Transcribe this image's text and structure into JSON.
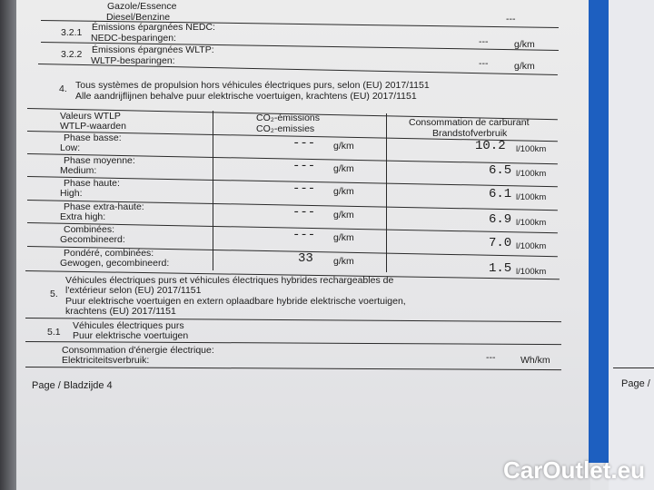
{
  "top": {
    "fuel_fr": "Gazole/Essence",
    "fuel_nl": "Diesel/Benzine",
    "fuel_value": "---"
  },
  "s321": {
    "num": "3.2.1",
    "fr": "Émissions épargnées NEDC:",
    "nl": "NEDC-besparingen:",
    "value": "---",
    "unit": "g/km"
  },
  "s322": {
    "num": "3.2.2",
    "fr": "Émissions épargnées WLTP:",
    "nl": "WLTP-besparingen:",
    "value": "---",
    "unit": "g/km"
  },
  "s4": {
    "num": "4.",
    "fr": "Tous systèmes de propulsion hors véhicules électriques purs, selon (EU) 2017/1151",
    "nl": "Alle aandrijflijnen behalve puur elektrische voertuigen, krachtens (EU) 2017/1151"
  },
  "table": {
    "headers": {
      "c1a": "Valeurs WTLP",
      "c1b": "WTLP-waarden",
      "c2a": "CO₂-émissions",
      "c2b": "CO₂-emissies",
      "c3a": "Consommation de carburant",
      "c3b": "Brandstofverbruik"
    },
    "rows": [
      {
        "fr": "Phase basse:",
        "nl": "Low:",
        "co2": "---",
        "co2_unit": "g/km",
        "fuel": "10.2",
        "fuel_unit": "l/100km"
      },
      {
        "fr": "Phase moyenne:",
        "nl": "Medium:",
        "co2": "---",
        "co2_unit": "g/km",
        "fuel": "6.5",
        "fuel_unit": "l/100km"
      },
      {
        "fr": "Phase haute:",
        "nl": "High:",
        "co2": "---",
        "co2_unit": "g/km",
        "fuel": "6.1",
        "fuel_unit": "l/100km"
      },
      {
        "fr": "Phase extra-haute:",
        "nl": "Extra high:",
        "co2": "---",
        "co2_unit": "g/km",
        "fuel": "6.9",
        "fuel_unit": "l/100km"
      },
      {
        "fr": "Combinées:",
        "nl": "Gecombineerd:",
        "co2": "---",
        "co2_unit": "g/km",
        "fuel": "7.0",
        "fuel_unit": "l/100km"
      },
      {
        "fr": "Pondéré, combinées:",
        "nl": "Gewogen, gecombineerd:",
        "co2": "33",
        "co2_unit": "g/km",
        "fuel": "1.5",
        "fuel_unit": "l/100km"
      }
    ]
  },
  "s5": {
    "num": "5.",
    "l1": "Véhicules électriques purs et véhicules électriques hybrides rechargeables de",
    "l2": "l'extérieur selon (EU) 2017/1151",
    "l3": "Puur elektrische voertuigen en extern oplaadbare hybride elektrische voertuigen,",
    "l4": "krachtens (EU) 2017/1151"
  },
  "s51": {
    "num": "5.1",
    "fr": "Véhicules électriques purs",
    "nl": "Puur elektrische voertuigen"
  },
  "elec": {
    "fr": "Consommation d'énergie électrique:",
    "nl": "Elektriciteitsverbruik:",
    "value": "---",
    "unit": "Wh/km"
  },
  "footer": {
    "page": "Page / Bladzijde 4",
    "next_page": "Page /"
  },
  "watermark": "CarOutlet.eu"
}
